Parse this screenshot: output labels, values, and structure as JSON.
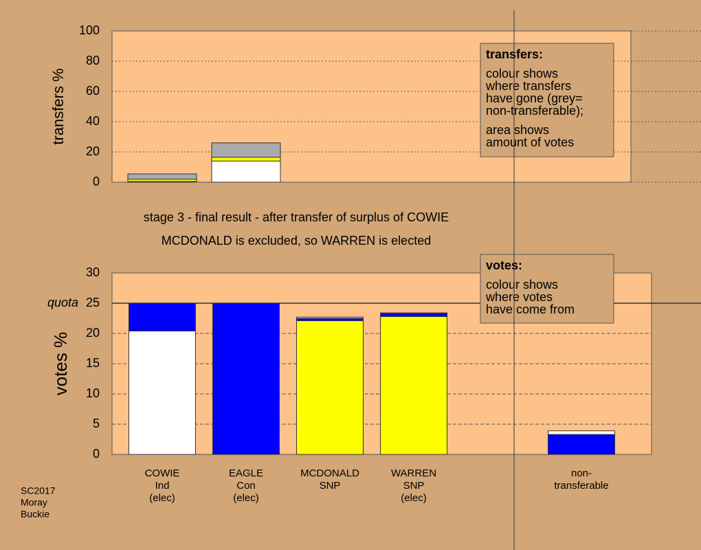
{
  "chart_data": [
    {
      "type": "stacked_bar",
      "ylabel": "transfers %",
      "ylim": [
        0,
        100
      ],
      "yticks": [
        0,
        20,
        40,
        60,
        80,
        100
      ],
      "grid": true,
      "note": {
        "title": "transfers:",
        "lines": [
          "colour shows",
          "where transfers",
          "have gone (grey=",
          "non-transferable);"
        ],
        "lines2": [
          "area shows",
          "amount of votes"
        ]
      },
      "bars": [
        {
          "segments": [
            {
              "color": "#ffffff",
              "value": 0.5
            },
            {
              "color": "#ffff00",
              "value": 1.5
            },
            {
              "color": "#aaaaaa",
              "value": 3.5
            }
          ]
        },
        {
          "segments": [
            {
              "color": "#ffffff",
              "value": 14
            },
            {
              "color": "#ffff00",
              "value": 2.5
            },
            {
              "color": "#aaaaaa",
              "value": 9.5
            }
          ]
        }
      ]
    },
    {
      "type": "stacked_bar",
      "title": "stage 3 - final result - after transfer of surplus of COWIE",
      "subtitle": "MCDONALD is excluded, so WARREN is elected",
      "ylabel": "votes %",
      "ylim": [
        0,
        30
      ],
      "yticks": [
        0,
        5,
        10,
        15,
        20,
        25,
        30
      ],
      "grid": true,
      "quota": {
        "value": 25,
        "label": "quota"
      },
      "note": {
        "title": "votes:",
        "lines": [
          "colour shows",
          "where votes",
          "have come from"
        ]
      },
      "categories": [
        [
          "COWIE",
          "Ind",
          "(elec)"
        ],
        [
          "EAGLE",
          "Con",
          "(elec)"
        ],
        [
          "MCDONALD",
          "SNP"
        ],
        [
          "WARREN",
          "SNP",
          "(elec)"
        ],
        null,
        [
          "non-",
          "transferable"
        ]
      ],
      "bars": [
        {
          "segments": [
            {
              "color": "#ffffff",
              "value": 20.4
            },
            {
              "color": "#0000ff",
              "value": 4.6
            }
          ]
        },
        {
          "segments": [
            {
              "color": "#0000ff",
              "value": 25
            }
          ]
        },
        {
          "segments": [
            {
              "color": "#ffff00",
              "value": 22.1
            },
            {
              "color": "#0000ff",
              "value": 0.4
            },
            {
              "color": "#ffffff",
              "value": 0.2
            }
          ]
        },
        {
          "segments": [
            {
              "color": "#ffff00",
              "value": 22.8
            },
            {
              "color": "#0000ff",
              "value": 0.5
            },
            {
              "color": "#ffffff",
              "value": 0.1
            }
          ]
        },
        null,
        {
          "segments": [
            {
              "color": "#0000ff",
              "value": 3.3
            },
            {
              "color": "#ffffff",
              "value": 0.6
            }
          ]
        }
      ]
    }
  ],
  "footer": [
    "SC2017",
    "Moray",
    "Buckie"
  ]
}
